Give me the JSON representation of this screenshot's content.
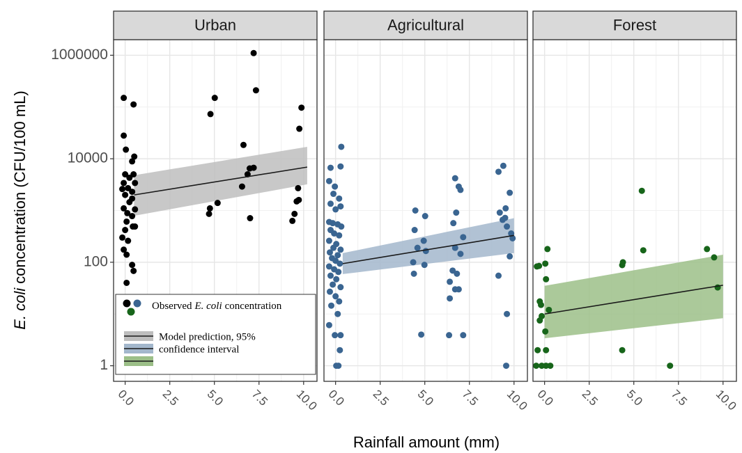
{
  "chart_data": [
    {
      "type": "scatter",
      "title": "Urban",
      "log_y": true,
      "grid": true,
      "xlim": [
        -0.65,
        10.75
      ],
      "ylim": [
        0.5,
        2000000
      ],
      "xticks": [
        {
          "value": 0,
          "label": "0.0"
        },
        2.5,
        {
          "value": 5,
          "label": "5.0"
        },
        7.5,
        {
          "value": 10,
          "label": "10.0"
        }
      ],
      "yticks": [
        1,
        100,
        10000,
        1000000
      ],
      "series": [
        {
          "color": "#000000",
          "x": [
            -0.08,
            0.47,
            -0.08,
            0.04,
            0.51,
            0.39,
            0.47,
            0.0,
            0.24,
            -0.08,
            0.55,
            0.16,
            -0.16,
            0.39,
            0.0,
            0.39,
            -0.08,
            0.24,
            0.55,
            0.12,
            0.39,
            0.08,
            0.55,
            0.0,
            -0.16,
            0.16,
            -0.08,
            0.08,
            0.39,
            0.47,
            0.08,
            0.43,
            4.78,
            5.02,
            4.75,
            4.7,
            5.18,
            6.63,
            6.55,
            6.86,
            6.98,
            7.2,
            7.0,
            7.2,
            7.33,
            9.88,
            9.76,
            9.69,
            9.73,
            9.61,
            9.49,
            9.37
          ],
          "values": [
            150000,
            112000,
            28000,
            15000,
            11000,
            8900,
            5000,
            5000,
            4300,
            3400,
            3400,
            2700,
            2600,
            2300,
            2000,
            1700,
            1100,
            1450,
            1050,
            890,
            780,
            610,
            490,
            420,
            300,
            260,
            175,
            140,
            89,
            68,
            40,
            490,
            73000,
            150000,
            1100,
            860,
            1400,
            18500,
            2900,
            5000,
            6500,
            6700,
            710,
            1100000,
            210000,
            97000,
            38000,
            2700,
            1600,
            1500,
            860,
            630
          ]
        }
      ],
      "fit": {
        "color": "#1a1a1a",
        "band_color": "#bebebe",
        "x": [
          0.5,
          10.2
        ],
        "values": [
          2000,
          6900
        ],
        "lower": [
          790,
          3200
        ],
        "upper": [
          4800,
          17000
        ]
      }
    },
    {
      "type": "scatter",
      "title": "Agricultural",
      "log_y": true,
      "grid": true,
      "xlim": [
        -0.65,
        10.75
      ],
      "ylim": [
        0.5,
        2000000
      ],
      "xticks": [
        {
          "value": 0,
          "label": "0.0"
        },
        2.5,
        {
          "value": 5,
          "label": "5.0"
        },
        7.5,
        {
          "value": 10,
          "label": "10.0"
        }
      ],
      "yticks": [
        1,
        100,
        10000,
        1000000
      ],
      "series": [
        {
          "color": "#3a6591",
          "x": [
            0.32,
            -0.28,
            0.28,
            -0.36,
            -0.04,
            -0.12,
            0.2,
            -0.28,
            0.0,
            0.28,
            -0.36,
            -0.16,
            0.12,
            0.32,
            -0.28,
            -0.08,
            0.2,
            -0.36,
            0.04,
            -0.12,
            0.28,
            -0.32,
            0.12,
            -0.2,
            0.0,
            0.24,
            -0.36,
            -0.08,
            0.16,
            -0.28,
            0.04,
            -0.16,
            0.28,
            -0.32,
            0.0,
            0.2,
            -0.24,
            0.12,
            -0.36,
            -0.04,
            0.28,
            0.24,
            0.04,
            0.16,
            4.47,
            4.43,
            5.02,
            4.94,
            4.59,
            5.06,
            4.35,
            4.98,
            4.39,
            4.8,
            6.7,
            7.0,
            6.9,
            6.76,
            6.6,
            7.15,
            6.7,
            7.0,
            6.56,
            6.8,
            6.4,
            6.7,
            6.4,
            6.9,
            6.36,
            7.15,
            9.4,
            9.13,
            9.76,
            9.53,
            9.2,
            9.36,
            9.6,
            9.84,
            9.92,
            9.5,
            9.13,
            9.76,
            9.6,
            9.56
          ],
          "values": [
            17000,
            6700,
            7100,
            3700,
            2900,
            2100,
            1700,
            1350,
            1050,
            1200,
            600,
            570,
            540,
            490,
            420,
            360,
            330,
            260,
            225,
            190,
            175,
            155,
            137,
            120,
            107,
            94,
            83,
            73,
            65,
            55,
            47,
            37,
            33,
            27,
            22,
            17.5,
            14.5,
            10,
            6.1,
            3.9,
            3.9,
            2,
            1,
            1,
            1000,
            420,
            780,
            260,
            190,
            165,
            100,
            89,
            60,
            4,
            4200,
            2500,
            2900,
            910,
            570,
            305,
            190,
            145,
            69,
            60,
            42,
            30,
            20,
            30,
            3.9,
            3.9,
            7300,
            5600,
            2200,
            1100,
            910,
            660,
            490,
            360,
            290,
            720,
            55,
            130,
            10,
            1
          ]
        }
      ],
      "fit": {
        "color": "#1a1a1a",
        "band_color": "#a3b7cc",
        "x": [
          0.4,
          10.0
        ],
        "values": [
          94,
          330
        ],
        "lower": [
          59,
          150
        ],
        "upper": [
          150,
          710
        ]
      }
    },
    {
      "type": "scatter",
      "title": "Forest",
      "log_y": true,
      "grid": true,
      "xlim": [
        -0.65,
        10.75
      ],
      "ylim": [
        0.5,
        2000000
      ],
      "xticks": [
        {
          "value": 0,
          "label": "0.0"
        },
        2.5,
        {
          "value": 5,
          "label": "5.0"
        },
        7.5,
        {
          "value": 10,
          "label": "10.0"
        }
      ],
      "yticks": [
        1,
        100,
        10000,
        1000000
      ],
      "series": [
        {
          "color": "#17651a",
          "x": [
            -0.43,
            -0.31,
            0.04,
            0.16,
            0.08,
            -0.27,
            -0.2,
            0.24,
            -0.16,
            -0.27,
            0.04,
            -0.39,
            0.08,
            -0.47,
            -0.16,
            0.08,
            0.32,
            4.35,
            4.39,
            4.35,
            5.45,
            5.53,
            7.03,
            9.1,
            9.5,
            9.7
          ],
          "values": [
            83,
            85,
            94,
            180,
            47,
            17.5,
            15,
            12,
            9.1,
            7.5,
            4.6,
            2,
            2,
            1,
            1,
            1,
            1,
            88,
            100,
            2,
            2400,
            170,
            1,
            180,
            124,
            32.6
          ]
        }
      ],
      "fit": {
        "color": "#1a1a1a",
        "band_color": "#9cbf88",
        "x": [
          0.0,
          10.0
        ],
        "values": [
          10,
          36
        ],
        "lower": [
          3.4,
          8.3
        ],
        "upper": [
          35,
          140
        ]
      }
    }
  ],
  "xlabel": "Rainfall amount (mm)",
  "ylabel": {
    "italic": "E. coli",
    "text": "concentration (CFU/100 mL)"
  },
  "legend": {
    "observed": {
      "before": "Observed",
      "italic": "E. coli",
      "after": "concentration"
    },
    "model": [
      "Model prediction, 95%",
      "confidence interval"
    ]
  }
}
